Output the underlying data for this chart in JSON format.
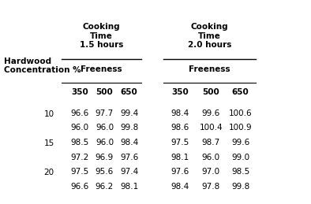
{
  "header1": [
    "Cooking\nTime\n1.5 hours",
    "Cooking\nTime\n2.0 hours"
  ],
  "header2": [
    "Freeness",
    "Freeness"
  ],
  "col_headers": [
    "350",
    "500",
    "650",
    "350",
    "500",
    "650"
  ],
  "row_label": "Hardwood\nConcentration %",
  "groups": [
    {
      "label": "10",
      "rows": [
        [
          "96.6",
          "97.7",
          "99.4",
          "98.4",
          "99.6",
          "100.6"
        ],
        [
          "96.0",
          "96.0",
          "99.8",
          "98.6",
          "100.4",
          "100.9"
        ]
      ]
    },
    {
      "label": "15",
      "rows": [
        [
          "98.5",
          "96.0",
          "98.4",
          "97.5",
          "98.7",
          "99.6"
        ],
        [
          "97.2",
          "96.9",
          "97.6",
          "98.1",
          "96.0",
          "99.0"
        ]
      ]
    },
    {
      "label": "20",
      "rows": [
        [
          "97.5",
          "95.6",
          "97.4",
          "97.6",
          "97.0",
          "98.5"
        ],
        [
          "96.6",
          "96.2",
          "98.1",
          "98.4",
          "97.8",
          "99.8"
        ]
      ]
    }
  ],
  "bg_color": "#ffffff",
  "font_size": 7.5,
  "bold_font_size": 7.5
}
